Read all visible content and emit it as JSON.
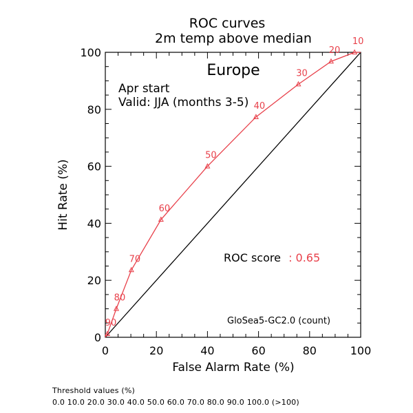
{
  "chart_data": {
    "type": "line",
    "title": "ROC curves",
    "subtitle": "2m temp above median",
    "region": "Europe",
    "info_lines": [
      "Apr start",
      "Valid: JJA (months 3-5)"
    ],
    "score_label": "ROC score",
    "score_value": ": 0.65",
    "model_label": "GloSea5-GC2.0 (count)",
    "xlabel": "False Alarm Rate (%)",
    "ylabel": "Hit Rate (%)",
    "xlim": [
      0,
      100
    ],
    "ylim": [
      0,
      100
    ],
    "xticks": [
      "0",
      "20",
      "40",
      "60",
      "80",
      "100"
    ],
    "yticks": [
      "0",
      "20",
      "40",
      "60",
      "80",
      "100"
    ],
    "diagonal": {
      "x": [
        0,
        100
      ],
      "y": [
        0,
        100
      ]
    },
    "series": [
      {
        "color": "#e8404a",
        "points": [
          {
            "label": "90",
            "x": 0.8,
            "y": 1.2
          },
          {
            "label": "80",
            "x": 4.3,
            "y": 10.0
          },
          {
            "label": "70",
            "x": 10.2,
            "y": 23.6
          },
          {
            "label": "60",
            "x": 21.8,
            "y": 41.3
          },
          {
            "label": "50",
            "x": 40.0,
            "y": 60.0
          },
          {
            "label": "40",
            "x": 59.0,
            "y": 77.3
          },
          {
            "label": "30",
            "x": 75.6,
            "y": 88.8
          },
          {
            "label": "20",
            "x": 88.4,
            "y": 96.8
          },
          {
            "label": "10",
            "x": 97.6,
            "y": 100.0
          }
        ]
      }
    ]
  },
  "footer": {
    "threshold_title": "Threshold values (%)",
    "threshold_values": "0.0 10.0 20.0 30.0 40.0 50.0 60.0 70.0 80.0 90.0 100.0 (>100)"
  },
  "colors": {
    "series": "#e8404a",
    "axes": "#000000"
  }
}
